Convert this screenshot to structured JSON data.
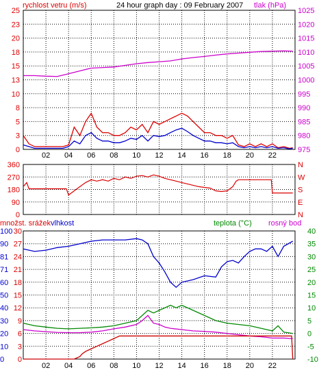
{
  "chart_data": [
    {
      "type": "line",
      "title": "24 hour graph day : 09 February 2007",
      "left_axis_label": "rychlost vetru (m/s)",
      "right_axis_label": "tlak (hPa)",
      "x_tick_labels": [
        "02",
        "04",
        "06",
        "08",
        "10",
        "12",
        "14",
        "16",
        "18",
        "20",
        "22"
      ],
      "x_range_hours": [
        0,
        24
      ],
      "left_ylim": [
        0,
        25
      ],
      "left_ticks": [
        "0",
        "3",
        "5",
        "8",
        "10",
        "13",
        "15",
        "18",
        "20",
        "23",
        "25"
      ],
      "right_ylim": [
        975,
        1025
      ],
      "right_ticks": [
        "975",
        "980",
        "985",
        "990",
        "995",
        "1000",
        "1005",
        "1010",
        "1015",
        "1020",
        "1025"
      ],
      "grid": true,
      "series": [
        {
          "axis": "right",
          "color": "#cc00cc",
          "x": [
            0,
            1,
            2,
            3,
            4,
            5,
            6,
            7,
            8,
            9,
            10,
            11,
            12,
            13,
            14,
            15,
            16,
            17,
            18,
            19,
            20,
            21,
            22,
            23,
            23.8
          ],
          "values": [
            1001.5,
            1001.5,
            1001.3,
            1001.2,
            1002.2,
            1003.2,
            1004.2,
            1004.4,
            1004.6,
            1005.2,
            1005.8,
            1006.2,
            1006.5,
            1006.8,
            1007.5,
            1008.0,
            1008.4,
            1008.9,
            1009.3,
            1009.6,
            1009.9,
            1010.2,
            1010.3,
            1010.4,
            1010.3
          ]
        },
        {
          "axis": "left",
          "color": "#dd0000",
          "x": [
            0,
            0.5,
            1,
            1.5,
            2,
            2.5,
            3,
            3.5,
            4,
            4.5,
            5,
            5.5,
            6,
            6.5,
            7,
            7.5,
            8,
            8.5,
            9,
            9.5,
            10,
            10.5,
            11,
            11.5,
            12,
            12.5,
            13,
            13.5,
            14,
            14.5,
            15,
            15.5,
            16,
            16.5,
            17,
            17.5,
            18,
            18.5,
            19,
            19.5,
            20,
            20.5,
            21,
            21.5,
            22,
            22.5,
            23,
            23.5,
            23.8
          ],
          "values": [
            2.5,
            1,
            0.5,
            0.5,
            0.5,
            0.5,
            0.5,
            0.5,
            0.8,
            4,
            2.5,
            5,
            6.5,
            4,
            3,
            3,
            2.5,
            2.5,
            3,
            4,
            3.5,
            4.5,
            3,
            5,
            4.5,
            5,
            5.5,
            6,
            6.5,
            6,
            5,
            4,
            3,
            3,
            2.5,
            2.5,
            2,
            2.5,
            0.8,
            0.5,
            1,
            0.5,
            1,
            0.5,
            1,
            0.3,
            0.5,
            0.2,
            0.3
          ]
        },
        {
          "axis": "left",
          "color": "#0000cc",
          "x": [
            0,
            0.5,
            1,
            1.5,
            2,
            2.5,
            3,
            3.5,
            4,
            4.5,
            5,
            5.5,
            6,
            6.5,
            7,
            7.5,
            8,
            8.5,
            9,
            9.5,
            10,
            10.5,
            11,
            11.5,
            12,
            12.5,
            13,
            13.5,
            14,
            14.5,
            15,
            15.5,
            16,
            16.5,
            17,
            17.5,
            18,
            18.5,
            19,
            19.5,
            20,
            20.5,
            21,
            21.5,
            22,
            22.5,
            23,
            23.5,
            23.8
          ],
          "values": [
            0.8,
            0.5,
            0.2,
            0.2,
            0.2,
            0.2,
            0.2,
            0.2,
            0.5,
            1.5,
            1,
            2.5,
            3,
            2,
            1.5,
            1.5,
            1.2,
            1.2,
            1.5,
            2,
            1.8,
            2.5,
            1.5,
            2.5,
            2.3,
            2.5,
            3,
            3.5,
            3.8,
            3.2,
            2.5,
            2,
            1.5,
            1.5,
            1.2,
            1.2,
            1,
            1.2,
            0.5,
            0.3,
            0.5,
            0.3,
            0.5,
            0.3,
            0.5,
            0.2,
            0.3,
            0.1,
            0.2
          ]
        }
      ]
    },
    {
      "type": "line",
      "left_ylim": [
        0,
        360
      ],
      "left_ticks": [
        "360",
        "270",
        "180",
        "90",
        "0"
      ],
      "right_labels": [
        "N",
        "W",
        "S",
        "E",
        "N"
      ],
      "x_range_hours": [
        0,
        24
      ],
      "series": [
        {
          "color": "#dd0000",
          "x": [
            0,
            0.3,
            0.5,
            1,
            2,
            3,
            3.8,
            4,
            4.5,
            5,
            5.5,
            6,
            6.5,
            7,
            7.5,
            8,
            8.5,
            9,
            9.5,
            10,
            10.5,
            11,
            11.5,
            12,
            12.5,
            13,
            13.5,
            14,
            14.5,
            15,
            15.5,
            16,
            16.5,
            17,
            17.5,
            18,
            18.5,
            18.8,
            19,
            20,
            21,
            21.9,
            22,
            23,
            23.8
          ],
          "values": [
            200,
            230,
            185,
            185,
            185,
            185,
            185,
            140,
            170,
            200,
            230,
            250,
            240,
            250,
            240,
            260,
            250,
            270,
            260,
            275,
            280,
            270,
            285,
            275,
            260,
            250,
            240,
            230,
            220,
            210,
            200,
            195,
            190,
            170,
            165,
            170,
            200,
            240,
            250,
            250,
            250,
            250,
            155,
            155,
            155
          ]
        }
      ]
    },
    {
      "type": "line",
      "left_label_1": "množst. srážek",
      "left_label_2": "vlhkost",
      "middle_label": "teplota (°C)",
      "right_label": "rosný bod",
      "x_range_hours": [
        0,
        24
      ],
      "x_tick_labels": [
        "02",
        "04",
        "06",
        "08",
        "10",
        "12",
        "14",
        "16",
        "18",
        "20",
        "22"
      ],
      "left_ylim": [
        0,
        100
      ],
      "left_ticks": [
        "0",
        "10",
        "20",
        "30",
        "40",
        "50",
        "60",
        "71",
        "81",
        "90",
        "100"
      ],
      "left_ticks_2": [
        "0",
        "3",
        "6",
        "9",
        "12",
        "15",
        "18",
        "21",
        "24",
        "27",
        "30"
      ],
      "right_ylim": [
        -10,
        40
      ],
      "right_ticks": [
        "-10",
        "-5",
        "0",
        "5",
        "10",
        "15",
        "20",
        "25",
        "30",
        "35",
        "40"
      ],
      "grid": true,
      "series": [
        {
          "name": "vlhkost",
          "color": "#0000cc",
          "x": [
            0,
            1,
            2,
            3,
            4,
            5,
            6,
            7,
            8,
            9,
            10,
            10.5,
            11,
            11.5,
            12,
            12.5,
            13,
            13.5,
            14,
            15,
            16,
            17,
            17.5,
            18,
            18.5,
            19,
            19.5,
            20,
            20.5,
            21,
            21.5,
            22,
            22.5,
            23,
            23.8
          ],
          "values": [
            86,
            84,
            85,
            87,
            88,
            90,
            92,
            93,
            93,
            93,
            94,
            93,
            90,
            80,
            75,
            68,
            60,
            56,
            60,
            62,
            65,
            64,
            72,
            76,
            77,
            75,
            80,
            84,
            86,
            86,
            84,
            88,
            80,
            88,
            92
          ]
        },
        {
          "name": "teplota (°C)",
          "color": "#008800",
          "axis": "right",
          "x": [
            0,
            1,
            2,
            3,
            4,
            5,
            6,
            7,
            8,
            9,
            10,
            10.5,
            11,
            11.5,
            12,
            12.5,
            13,
            13.5,
            14,
            15,
            16,
            17,
            18,
            19,
            20,
            21,
            22,
            22.5,
            23,
            23.8
          ],
          "values": [
            4,
            3,
            2.5,
            2,
            1.8,
            2,
            2.2,
            2.5,
            3,
            4,
            5,
            7,
            9,
            8,
            9,
            10,
            11,
            10,
            11,
            9,
            7,
            5,
            4,
            3.5,
            3,
            2,
            1,
            3,
            0.5,
            0
          ]
        },
        {
          "name": "rosný bod",
          "color": "#cc00cc",
          "axis": "right",
          "x": [
            0,
            1,
            2,
            3,
            4,
            5,
            6,
            7,
            8,
            9,
            10,
            10.5,
            11,
            11.5,
            12,
            12.5,
            13,
            14,
            15,
            16,
            17,
            18,
            19,
            20,
            21,
            22,
            23,
            23.8
          ],
          "values": [
            1.5,
            1,
            0.7,
            0.4,
            0.3,
            0.3,
            0.5,
            1,
            1.8,
            2.5,
            3.5,
            5,
            7,
            4,
            3.5,
            2.5,
            2,
            1.5,
            1,
            0.8,
            0.5,
            0,
            -0.5,
            -1,
            -1.3,
            -1.8,
            -1.8,
            -2
          ]
        },
        {
          "name": "množst. srážek",
          "color": "#cc0000",
          "axis": "left2",
          "x": [
            0,
            4.5,
            5,
            5.2,
            5.5,
            6,
            6.5,
            7,
            7.5,
            8,
            8.5,
            23.7,
            23.8
          ],
          "values": [
            0,
            0,
            0.6,
            1.2,
            1.8,
            2.4,
            3,
            3.6,
            4.2,
            4.8,
            5.4,
            5.4,
            0
          ]
        }
      ]
    }
  ],
  "colors": {
    "red": "#dd0000",
    "magenta": "#cc00cc",
    "blue": "#0000cc",
    "green": "#008800",
    "grid": "#000000"
  }
}
